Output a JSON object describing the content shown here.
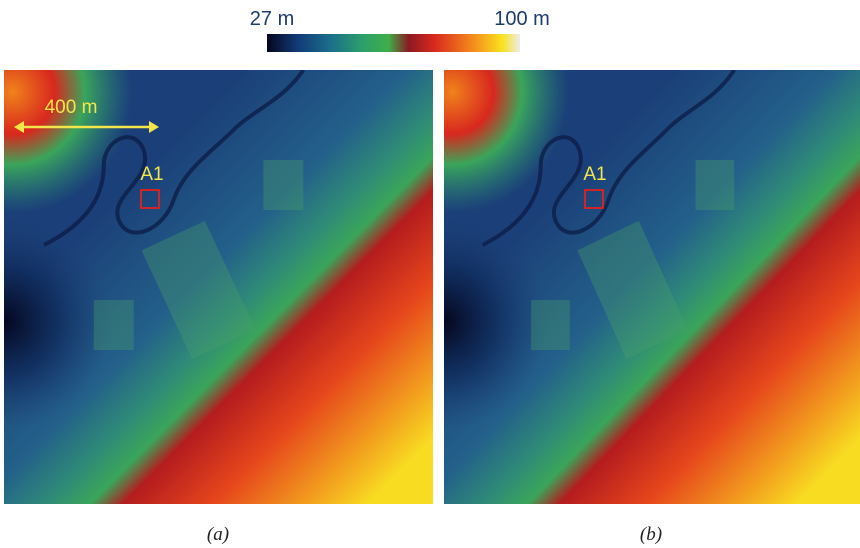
{
  "colorbar": {
    "min_label": "27 m",
    "max_label": "100 m"
  },
  "panels": [
    {
      "scale_label": "400 m",
      "marker_label": "A1",
      "caption": "(a)"
    },
    {
      "marker_label": "A1",
      "caption": "(b)"
    }
  ]
}
